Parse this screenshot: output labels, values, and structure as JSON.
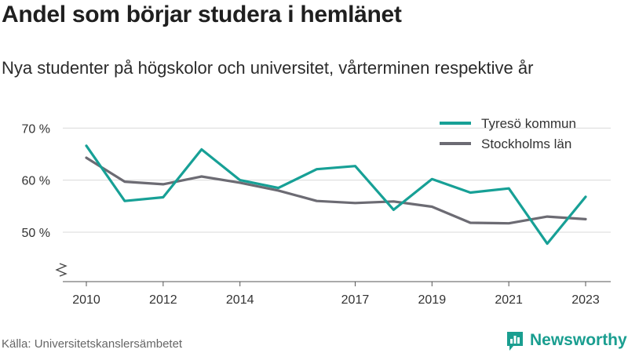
{
  "title": "Andel som börjar studera i hemlänet",
  "subtitle": "Nya studenter på högskolor och universitet, vårterminen respektive år",
  "source": "Källa: Universitetskanslersämbetet",
  "brand": {
    "name": "Newsworthy",
    "icon": "bar-chart-logo-icon",
    "color": "#1a9e90"
  },
  "chart_data": {
    "type": "line",
    "x": [
      2010,
      2011,
      2012,
      2013,
      2014,
      2015,
      2016,
      2017,
      2018,
      2019,
      2020,
      2021,
      2022,
      2023
    ],
    "x_tick_values": [
      2010,
      2012,
      2014,
      2017,
      2019,
      2021,
      2023
    ],
    "x_tick_labels": [
      "2010",
      "2012",
      "2014",
      "2017",
      "2019",
      "2021",
      "2023"
    ],
    "y_tick_values": [
      50,
      60,
      70
    ],
    "y_tick_labels": [
      "50 %",
      "60 %",
      "70 %"
    ],
    "ylim": [
      40.5,
      72
    ],
    "y_axis_break": true,
    "grid": true,
    "legend_position": "top-right",
    "series": [
      {
        "name": "Tyresö kommun",
        "color": "#17a096",
        "values": [
          66.6,
          56.0,
          56.7,
          65.9,
          60.0,
          58.5,
          62.1,
          62.7,
          54.3,
          60.2,
          57.6,
          58.4,
          47.8,
          56.8
        ]
      },
      {
        "name": "Stockholms län",
        "color": "#6c6b73",
        "values": [
          64.3,
          59.7,
          59.2,
          60.7,
          59.5,
          58.0,
          56.0,
          55.6,
          55.9,
          54.9,
          51.8,
          51.7,
          53.0,
          52.5
        ]
      }
    ]
  }
}
